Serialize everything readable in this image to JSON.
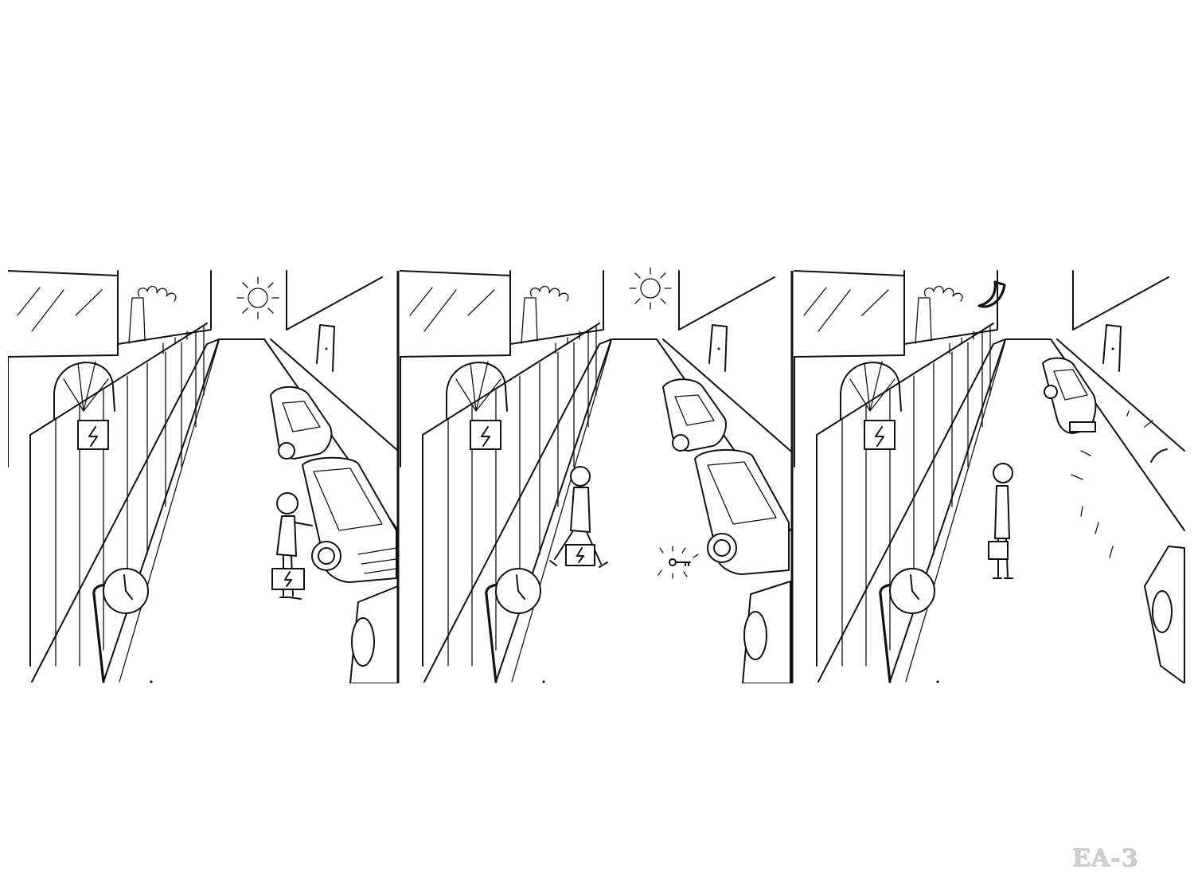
{
  "figure": {
    "label": "EA-3",
    "panels": [
      {
        "name": "panel-1",
        "sky_icon": "sun-icon",
        "scene": "man-at-car-door"
      },
      {
        "name": "panel-2",
        "sky_icon": "sun-icon",
        "scene": "man-walking-dropped-key"
      },
      {
        "name": "panel-3",
        "sky_icon": "moon-icon",
        "scene": "man-standing-car-driving-away"
      }
    ]
  }
}
